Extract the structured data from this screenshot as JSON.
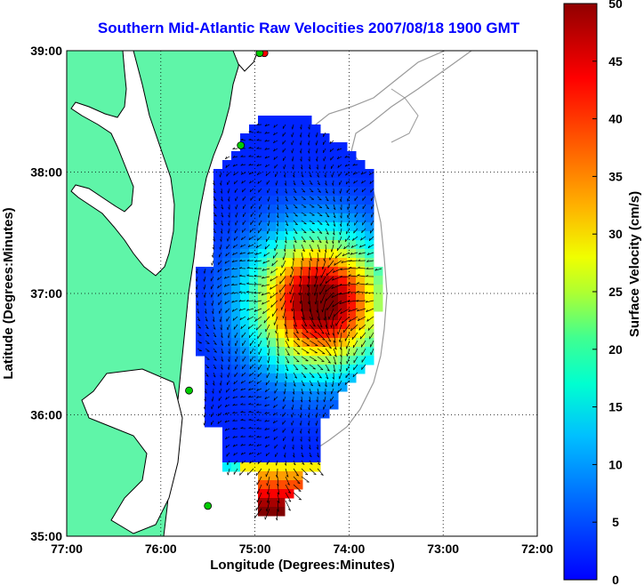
{
  "title": "Southern Mid-Atlantic Raw Velocities 2007/08/18 1900 GMT",
  "axes": {
    "xlabel": "Longitude (Degrees:Minutes)",
    "ylabel": "Latitude (Degrees:Minutes)",
    "xticks": [
      "77:00",
      "76:00",
      "75:00",
      "74:00",
      "73:00",
      "72:00"
    ],
    "yticks": [
      "39:00",
      "38:00",
      "37:00",
      "36:00",
      "35:00"
    ],
    "xlim": [
      -77,
      -72
    ],
    "ylim": [
      35,
      39
    ],
    "grid": true
  },
  "colorbar": {
    "label": "Surface Velocity (cm/s)",
    "ticks": [
      "0",
      "5",
      "10",
      "15",
      "20",
      "25",
      "30",
      "35",
      "40",
      "45",
      "50"
    ],
    "range": [
      0,
      50
    ],
    "colormap": "jet"
  },
  "colors": {
    "land": "#5ff5a8",
    "title": "#0000ff",
    "bathymetry": "#9a9a9a",
    "coast": "#000000"
  },
  "stations": [
    {
      "lon": -74.9,
      "lat": 38.98,
      "color": "#ff0000"
    },
    {
      "lon": -74.95,
      "lat": 38.98,
      "color": "#00cc00"
    },
    {
      "lon": -75.15,
      "lat": 38.22,
      "color": "#00cc00"
    },
    {
      "lon": -75.7,
      "lat": 36.2,
      "color": "#00cc00"
    },
    {
      "lon": -75.5,
      "lat": 35.25,
      "color": "#00cc00"
    }
  ]
}
